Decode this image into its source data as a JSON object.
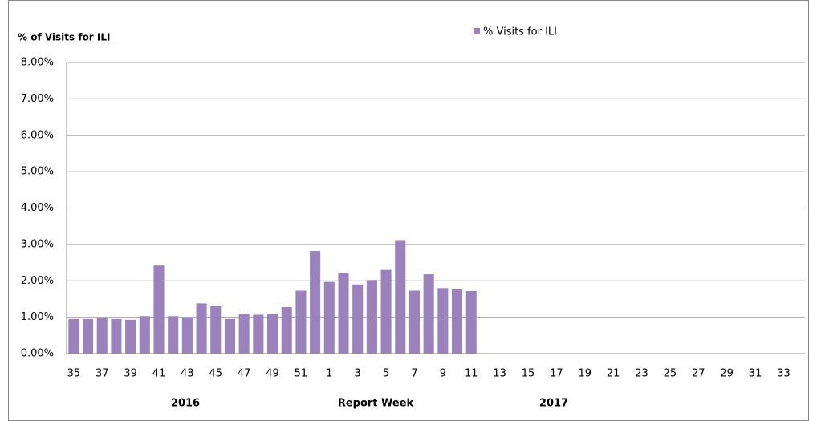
{
  "chart_data": {
    "type": "bar",
    "y_axis_title": "% of Visits for ILI",
    "x_axis_title": "Report Week",
    "year_labels": [
      "2016",
      "2017"
    ],
    "categories": [
      "35",
      null,
      "37",
      null,
      "39",
      null,
      "41",
      null,
      "43",
      null,
      "45",
      null,
      "47",
      null,
      "49",
      null,
      "51",
      null,
      "1",
      null,
      "3",
      null,
      "5",
      null,
      "7",
      null,
      "9",
      null,
      "11",
      null,
      "13",
      null,
      "15",
      null,
      "17",
      null,
      "19",
      null,
      "21",
      null,
      "23",
      null,
      "25",
      null,
      "27",
      null,
      "29",
      null,
      "31",
      null,
      "33",
      null
    ],
    "series": [
      {
        "name": "% Visits for ILI",
        "color": "#9a83bd",
        "values": [
          0.95,
          0.95,
          0.97,
          0.95,
          0.93,
          1.03,
          2.42,
          1.03,
          1.0,
          1.38,
          1.3,
          0.95,
          1.1,
          1.07,
          1.08,
          1.28,
          1.73,
          2.82,
          1.97,
          2.22,
          1.9,
          2.02,
          2.3,
          3.12,
          1.73,
          2.18,
          1.8,
          1.77,
          1.72,
          null,
          null,
          null,
          null,
          null,
          null,
          null,
          null,
          null,
          null,
          null,
          null,
          null,
          null,
          null,
          null,
          null,
          null,
          null,
          null,
          null,
          null,
          null
        ]
      }
    ],
    "ylim": [
      0,
      8
    ],
    "yticks": [
      {
        "value": 0,
        "label": "0.00%"
      },
      {
        "value": 1,
        "label": "1.00%"
      },
      {
        "value": 2,
        "label": "2.00%"
      },
      {
        "value": 3,
        "label": "3.00%"
      },
      {
        "value": 4,
        "label": "4.00%"
      },
      {
        "value": 5,
        "label": "5.00%"
      },
      {
        "value": 6,
        "label": "6.00%"
      },
      {
        "value": 7,
        "label": "7.00%"
      },
      {
        "value": 8,
        "label": "8.00%"
      }
    ],
    "grid": true,
    "legend": "top"
  }
}
